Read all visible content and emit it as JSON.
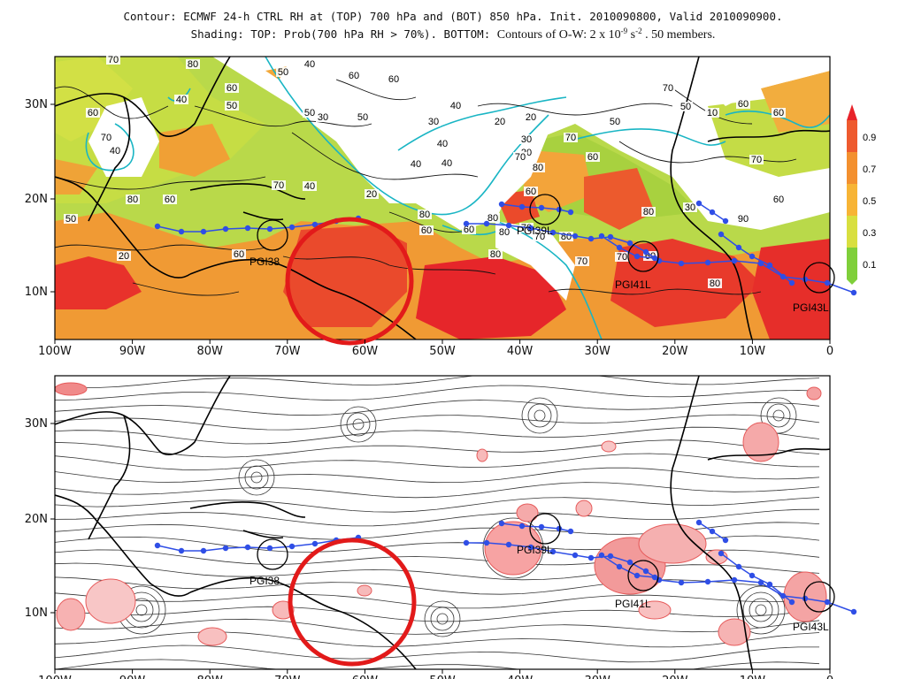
{
  "title": {
    "line1": "Contour: ECMWF 24-h CTRL RH at (TOP) 700 hPa and (BOT) 850 hPa. Init. 2010090800, Valid 2010090900.",
    "line2_main": "Shading: TOP: Prob(700 hPa RH > 70%).  BOTTOM:",
    "line2_b": "Contours of O-W: 2 x 10",
    "line2_exp1": "-9",
    "line2_c": " s",
    "line2_exp2": "-2",
    "line2_d": " . 50 members."
  },
  "axes": {
    "lon_ticks": [
      "100W",
      "90W",
      "80W",
      "70W",
      "60W",
      "50W",
      "40W",
      "30W",
      "20W",
      "10W",
      "0"
    ],
    "lat_ticks": [
      "30N",
      "20N",
      "10N"
    ]
  },
  "colorbar": {
    "labels": [
      "0.9",
      "0.7",
      "0.5",
      "0.3",
      "0.1"
    ],
    "colors": [
      "#e8232a",
      "#ee5a2e",
      "#f3902f",
      "#f7b435",
      "#d8df3f",
      "#7fcf3a"
    ]
  },
  "storms": {
    "top": [
      "PGI38",
      "PGI39L",
      "PGI41L",
      "PGI43L"
    ],
    "bottom": [
      "PGI38",
      "PGI39L",
      "PGI41L",
      "PGI43L"
    ]
  },
  "contour_labels_top": [
    "70",
    "80",
    "50",
    "60",
    "60",
    "40",
    "60",
    "50",
    "70",
    "40",
    "60",
    "50",
    "30",
    "50",
    "40",
    "20",
    "30",
    "40",
    "20",
    "50",
    "30",
    "20",
    "70",
    "40",
    "40",
    "40",
    "10",
    "50",
    "60",
    "70",
    "60",
    "60",
    "70",
    "60",
    "80",
    "60",
    "50",
    "70",
    "40",
    "20",
    "60",
    "80",
    "80",
    "70",
    "70",
    "80",
    "60",
    "80",
    "70",
    "60",
    "80",
    "30",
    "90",
    "80",
    "70",
    "60",
    "20",
    "60",
    "80",
    "80",
    "70"
  ],
  "colors": {
    "track": "#2f4ee6",
    "highlight": "#e21a1a",
    "rh_contour": "#19b5c4"
  }
}
